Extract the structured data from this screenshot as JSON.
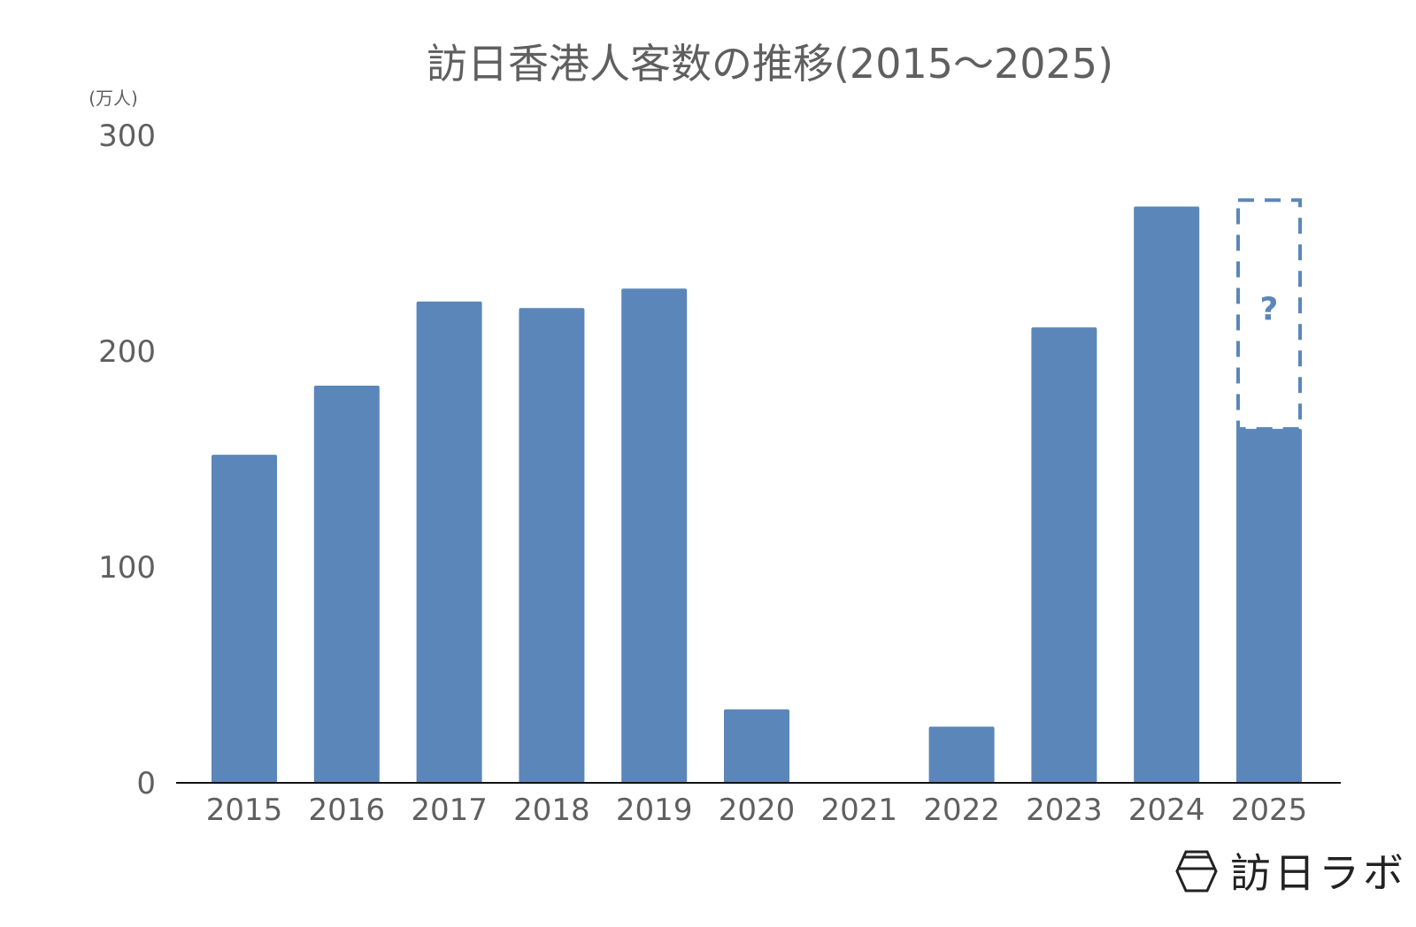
{
  "chart_data": {
    "type": "bar",
    "title": "訪日香港人客数の推移(2015～2025)",
    "unit_label": "(万人)",
    "xlabel": "",
    "ylabel": "",
    "ylim": [
      0,
      300
    ],
    "yticks": [
      0,
      100,
      200,
      300
    ],
    "grid": false,
    "categories": [
      "2015",
      "2016",
      "2017",
      "2018",
      "2019",
      "2020",
      "2021",
      "2022",
      "2023",
      "2024",
      "2025"
    ],
    "values": [
      152,
      184,
      223,
      220,
      229,
      34,
      0,
      26,
      211,
      267,
      164
    ],
    "projection": {
      "category": "2025",
      "value": 270,
      "label": "?"
    },
    "bar_color": "#5b86b9",
    "text_color": "#5f5f5f",
    "logo_text": "訪日ラボ"
  }
}
